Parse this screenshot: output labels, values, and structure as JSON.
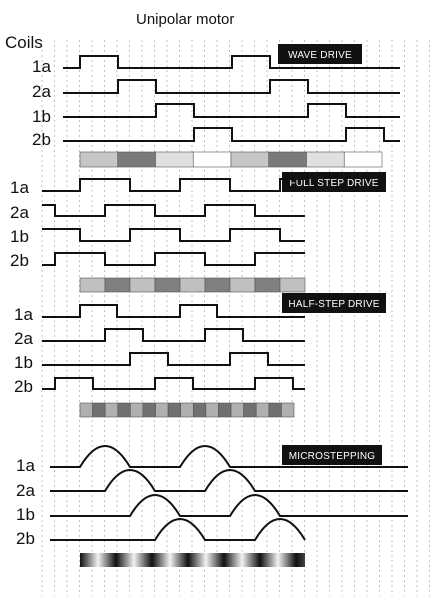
{
  "title": "Unipolar motor",
  "coils_header": "Coils",
  "sections": [
    {
      "banner": "WAVE DRIVE",
      "coils": [
        "1a",
        "2a",
        "1b",
        "2b"
      ],
      "pulse_shape": "square",
      "bar_colors": [
        "#c6c6c6",
        "#7a7a7a",
        "#e0e0e0",
        "#ffffff",
        "#c6c6c6",
        "#7a7a7a",
        "#e0e0e0",
        "#ffffff"
      ]
    },
    {
      "banner": "FULL STEP DRIVE",
      "coils": [
        "1a",
        "2a",
        "1b",
        "2b"
      ],
      "pulse_shape": "square",
      "bar_colors": [
        "#c0c0c0",
        "#808080",
        "#c0c0c0",
        "#808080",
        "#c0c0c0",
        "#808080",
        "#c0c0c0",
        "#808080",
        "#c0c0c0"
      ]
    },
    {
      "banner": "HALF-STEP DRIVE",
      "coils": [
        "1a",
        "2a",
        "1b",
        "2b"
      ],
      "pulse_shape": "square",
      "bar_colors": [
        "#b0b0b0",
        "#707070",
        "#b0b0b0",
        "#707070",
        "#b0b0b0",
        "#707070",
        "#b0b0b0",
        "#707070",
        "#b0b0b0",
        "#707070",
        "#b0b0b0",
        "#707070",
        "#b0b0b0",
        "#707070",
        "#b0b0b0",
        "#707070",
        "#b0b0b0"
      ]
    },
    {
      "banner": "MICROSTEPPING",
      "coils": [
        "1a",
        "2a",
        "1b",
        "2b"
      ],
      "pulse_shape": "sinusoidal",
      "bar_style": "gradient"
    }
  ]
}
